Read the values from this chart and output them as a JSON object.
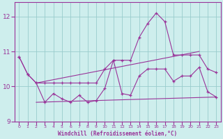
{
  "bg_color": "#ceeeed",
  "line_color": "#993399",
  "grid_color": "#99cccc",
  "xlabel": "Windchill (Refroidissement éolien,°C)",
  "ylim": [
    9.0,
    12.4
  ],
  "xlim": [
    -0.5,
    23.5
  ],
  "yticks": [
    9,
    10,
    11,
    12
  ],
  "xticks": [
    0,
    1,
    2,
    3,
    4,
    5,
    6,
    7,
    8,
    9,
    10,
    11,
    12,
    13,
    14,
    15,
    16,
    17,
    18,
    19,
    20,
    21,
    22,
    23
  ],
  "curve1_x": [
    0,
    1,
    2,
    3,
    4,
    5,
    6,
    7,
    8,
    9,
    10,
    11,
    12,
    13,
    14,
    15,
    16,
    17,
    18,
    19,
    20,
    21,
    22,
    23
  ],
  "curve1_y": [
    10.85,
    10.35,
    10.1,
    10.1,
    10.1,
    10.1,
    10.1,
    10.1,
    10.1,
    10.1,
    10.5,
    10.75,
    10.75,
    10.75,
    11.4,
    11.8,
    12.1,
    11.85,
    10.9,
    10.9,
    10.9,
    10.9,
    10.5,
    10.4
  ],
  "curve2_x": [
    0,
    1,
    2,
    3,
    4,
    5,
    6,
    7,
    8,
    9,
    10,
    11,
    12,
    13,
    14,
    15,
    16,
    17,
    18,
    19,
    20,
    21,
    22,
    23
  ],
  "curve2_y": [
    10.85,
    10.35,
    10.1,
    9.55,
    9.8,
    9.65,
    9.55,
    9.75,
    9.55,
    9.6,
    9.95,
    10.75,
    9.8,
    9.75,
    10.3,
    10.5,
    10.5,
    10.5,
    10.15,
    10.3,
    10.3,
    10.55,
    9.85,
    9.7
  ],
  "line3_x": [
    2,
    21
  ],
  "line3_y": [
    10.1,
    11.0
  ],
  "line4_x": [
    2,
    23
  ],
  "line4_y": [
    9.55,
    9.7
  ]
}
